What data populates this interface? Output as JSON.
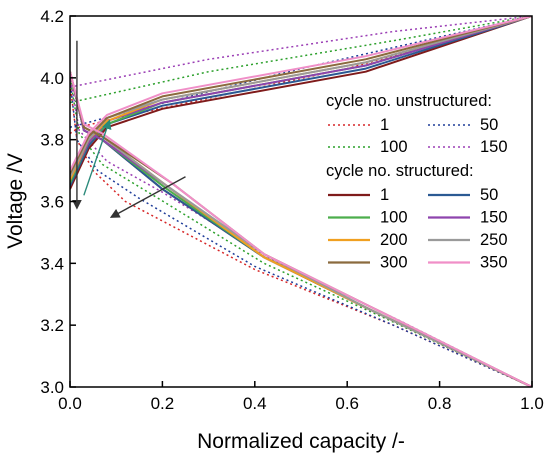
{
  "chart_data": {
    "type": "line",
    "xlabel": "Normalized capacity /-",
    "ylabel": "Voltage /V",
    "xlim": [
      0.0,
      1.0
    ],
    "ylim": [
      3.0,
      4.2
    ],
    "x_ticks": [
      0.0,
      0.2,
      0.4,
      0.6,
      0.8,
      1.0
    ],
    "y_ticks": [
      3.0,
      3.2,
      3.4,
      3.6,
      3.8,
      4.0,
      4.2
    ],
    "x_tick_labels": [
      "0.0",
      "0.2",
      "0.4",
      "0.6",
      "0.8",
      "1.0"
    ],
    "y_tick_labels": [
      "3.0",
      "3.2",
      "3.4",
      "3.6",
      "3.8",
      "4.0",
      "4.2"
    ],
    "legend_position": "upper-right",
    "legend": {
      "group_unstructured_title": "cycle no. unstructured:",
      "group_structured_title": "cycle no. structured:",
      "unstructured": [
        {
          "label": "1",
          "color": "#d62728",
          "style": "dotted"
        },
        {
          "label": "50",
          "color": "#1f3d99",
          "style": "dotted"
        },
        {
          "label": "100",
          "color": "#2ca02c",
          "style": "dotted"
        },
        {
          "label": "150",
          "color": "#9b3fb5",
          "style": "dotted"
        }
      ],
      "structured": [
        {
          "label": "1",
          "color": "#7f1b1b",
          "style": "solid"
        },
        {
          "label": "50",
          "color": "#2b5a93",
          "style": "solid"
        },
        {
          "label": "100",
          "color": "#4cae4c",
          "style": "solid"
        },
        {
          "label": "150",
          "color": "#8e44ad",
          "style": "solid"
        },
        {
          "label": "200",
          "color": "#f0a020",
          "style": "solid"
        },
        {
          "label": "250",
          "color": "#9a9a9a",
          "style": "solid"
        },
        {
          "label": "300",
          "color": "#8b6a3e",
          "style": "solid"
        },
        {
          "label": "350",
          "color": "#f08fc8",
          "style": "solid"
        }
      ]
    },
    "series": [
      {
        "name": "unstructured 1",
        "color": "#d62728",
        "style": "dotted",
        "charge": {
          "x": [
            0.0,
            0.02,
            0.1,
            0.6,
            1.0
          ],
          "y": [
            3.82,
            3.84,
            3.87,
            4.03,
            4.2
          ]
        },
        "discharge": {
          "x": [
            0.0,
            0.015,
            0.05,
            0.12,
            0.4,
            0.7,
            1.0
          ],
          "y": [
            3.98,
            3.8,
            3.7,
            3.6,
            3.38,
            3.2,
            3.0
          ]
        }
      },
      {
        "name": "unstructured 50",
        "color": "#1f3d99",
        "style": "dotted",
        "charge": {
          "x": [
            0.0,
            0.1,
            0.5,
            1.0
          ],
          "y": [
            3.84,
            3.88,
            4.03,
            4.2
          ]
        },
        "discharge": {
          "x": [
            0.0,
            0.015,
            0.06,
            0.15,
            0.4,
            0.7,
            1.0
          ],
          "y": [
            3.99,
            3.8,
            3.7,
            3.61,
            3.39,
            3.2,
            3.0
          ]
        }
      },
      {
        "name": "unstructured 100",
        "color": "#2ca02c",
        "style": "dotted",
        "charge": {
          "x": [
            0.0,
            0.3,
            0.7,
            1.0
          ],
          "y": [
            3.92,
            4.02,
            4.12,
            4.2
          ]
        },
        "discharge": {
          "x": [
            0.0,
            0.02,
            0.07,
            0.18,
            0.42,
            0.7,
            1.0
          ],
          "y": [
            4.0,
            3.82,
            3.72,
            3.62,
            3.4,
            3.21,
            3.0
          ]
        }
      },
      {
        "name": "unstructured 150",
        "color": "#9b3fb5",
        "style": "dotted",
        "charge": {
          "x": [
            0.0,
            0.3,
            0.7,
            1.0
          ],
          "y": [
            3.97,
            4.06,
            4.15,
            4.2
          ]
        },
        "discharge": {
          "x": [
            0.0,
            0.02,
            0.08,
            0.2,
            0.44,
            0.72,
            1.0
          ],
          "y": [
            4.01,
            3.83,
            3.73,
            3.63,
            3.41,
            3.21,
            3.0
          ]
        }
      },
      {
        "name": "structured 1",
        "color": "#7f1b1b",
        "style": "solid",
        "charge": {
          "x": [
            0.0,
            0.04,
            0.08,
            0.2,
            0.64,
            1.0
          ],
          "y": [
            3.64,
            3.77,
            3.84,
            3.9,
            4.02,
            4.2
          ]
        },
        "discharge": {
          "x": [
            0.0,
            0.03,
            0.07,
            0.2,
            0.42,
            0.65,
            1.0
          ],
          "y": [
            4.02,
            3.83,
            3.8,
            3.64,
            3.42,
            3.25,
            3.0
          ]
        }
      },
      {
        "name": "structured 50",
        "color": "#2b5a93",
        "style": "solid",
        "charge": {
          "x": [
            0.0,
            0.04,
            0.08,
            0.2,
            0.64,
            1.0
          ],
          "y": [
            3.65,
            3.78,
            3.85,
            3.91,
            4.03,
            4.2
          ]
        },
        "discharge": {
          "x": [
            0.0,
            0.03,
            0.07,
            0.2,
            0.42,
            0.65,
            1.0
          ],
          "y": [
            4.02,
            3.83,
            3.8,
            3.64,
            3.42,
            3.25,
            3.0
          ]
        }
      },
      {
        "name": "structured 100",
        "color": "#4cae4c",
        "style": "solid",
        "charge": {
          "x": [
            0.0,
            0.04,
            0.08,
            0.2,
            0.64,
            1.0
          ],
          "y": [
            3.66,
            3.79,
            3.85,
            3.92,
            4.04,
            4.2
          ]
        },
        "discharge": {
          "x": [
            0.0,
            0.03,
            0.07,
            0.21,
            0.42,
            0.65,
            1.0
          ],
          "y": [
            4.02,
            3.83,
            3.8,
            3.64,
            3.42,
            3.25,
            3.0
          ]
        }
      },
      {
        "name": "structured 150",
        "color": "#8e44ad",
        "style": "solid",
        "charge": {
          "x": [
            0.0,
            0.04,
            0.08,
            0.2,
            0.64,
            1.0
          ],
          "y": [
            3.67,
            3.79,
            3.86,
            3.92,
            4.04,
            4.2
          ]
        },
        "discharge": {
          "x": [
            0.0,
            0.03,
            0.07,
            0.21,
            0.42,
            0.65,
            1.0
          ],
          "y": [
            4.02,
            3.83,
            3.8,
            3.65,
            3.42,
            3.25,
            3.0
          ]
        }
      },
      {
        "name": "structured 200",
        "color": "#f0a020",
        "style": "solid",
        "charge": {
          "x": [
            0.0,
            0.04,
            0.08,
            0.2,
            0.64,
            1.0
          ],
          "y": [
            3.67,
            3.8,
            3.86,
            3.93,
            4.05,
            4.2
          ]
        },
        "discharge": {
          "x": [
            0.0,
            0.03,
            0.07,
            0.21,
            0.42,
            0.65,
            1.0
          ],
          "y": [
            4.02,
            3.84,
            3.81,
            3.65,
            3.42,
            3.25,
            3.0
          ]
        }
      },
      {
        "name": "structured 250",
        "color": "#9a9a9a",
        "style": "solid",
        "charge": {
          "x": [
            0.0,
            0.04,
            0.08,
            0.2,
            0.64,
            1.0
          ],
          "y": [
            3.68,
            3.8,
            3.87,
            3.93,
            4.05,
            4.2
          ]
        },
        "discharge": {
          "x": [
            0.0,
            0.03,
            0.07,
            0.21,
            0.42,
            0.65,
            1.0
          ],
          "y": [
            4.02,
            3.84,
            3.81,
            3.65,
            3.43,
            3.25,
            3.0
          ]
        }
      },
      {
        "name": "structured 300",
        "color": "#8b6a3e",
        "style": "solid",
        "charge": {
          "x": [
            0.0,
            0.04,
            0.08,
            0.2,
            0.64,
            1.0
          ],
          "y": [
            3.69,
            3.81,
            3.87,
            3.94,
            4.06,
            4.2
          ]
        },
        "discharge": {
          "x": [
            0.0,
            0.03,
            0.07,
            0.22,
            0.42,
            0.65,
            1.0
          ],
          "y": [
            4.02,
            3.84,
            3.81,
            3.66,
            3.43,
            3.26,
            3.0
          ]
        }
      },
      {
        "name": "structured 350",
        "color": "#f08fc8",
        "style": "solid",
        "charge": {
          "x": [
            0.0,
            0.04,
            0.08,
            0.2,
            0.64,
            1.0
          ],
          "y": [
            3.7,
            3.82,
            3.88,
            3.95,
            4.07,
            4.2
          ]
        },
        "discharge": {
          "x": [
            0.0,
            0.03,
            0.07,
            0.22,
            0.42,
            0.65,
            1.0
          ],
          "y": [
            4.02,
            3.85,
            3.82,
            3.66,
            3.43,
            3.26,
            3.0
          ]
        }
      }
    ],
    "annotations": [
      {
        "type": "arrow",
        "from": [
          0.015,
          4.12
        ],
        "to": [
          0.015,
          3.58
        ],
        "color": "#333333"
      },
      {
        "type": "arrow",
        "from": [
          0.25,
          3.68
        ],
        "to": [
          0.09,
          3.55
        ],
        "color": "#333333"
      },
      {
        "type": "arrow",
        "from": [
          0.03,
          3.62
        ],
        "to": [
          0.085,
          3.86
        ],
        "color": "#2a8a7a"
      }
    ]
  }
}
